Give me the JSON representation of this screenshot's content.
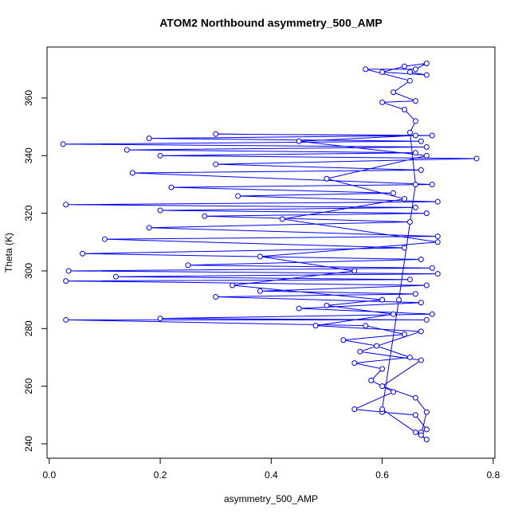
{
  "chart_data": {
    "type": "line",
    "title": "ATOM2 Northbound asymmetry_500_AMP",
    "x_label": "asymmetry_500_AMP",
    "y_label": "Theta (K)",
    "color": "#0000ff",
    "markers": true,
    "xlim": [
      -0.004,
      0.803
    ],
    "ylim": [
      235,
      377.7
    ],
    "xticks": [
      {
        "value": 0,
        "label": "0.0"
      },
      0.2,
      0.4,
      0.6,
      0.8
    ],
    "yticks": [
      240,
      260,
      280,
      300,
      320,
      340,
      360
    ],
    "series": [
      {
        "name": "asymmetry_500_AMP",
        "color": "#0000ff",
        "x": [
          0.67,
          0.68,
          0.66,
          0.6,
          0.55,
          0.62,
          0.58,
          0.6,
          0.55,
          0.65,
          0.59,
          0.53,
          0.64,
          0.57,
          0.03,
          0.68,
          0.2,
          0.69,
          0.45,
          0.67,
          0.3,
          0.66,
          0.38,
          0.68,
          0.03,
          0.65,
          0.12,
          0.7,
          0.035,
          0.69,
          0.25,
          0.67,
          0.06,
          0.64,
          0.1,
          0.7,
          0.18,
          0.65,
          0.28,
          0.68,
          0.2,
          0.66,
          0.03,
          0.7,
          0.34,
          0.62,
          0.22,
          0.69,
          0.15,
          0.67,
          0.3,
          0.77,
          0.2,
          0.66,
          0.14,
          0.68,
          0.025,
          0.67,
          0.18,
          0.69,
          0.3,
          0.66,
          0.45,
          0.68,
          0.5,
          0.64,
          0.42,
          0.7,
          0.38,
          0.55,
          0.33,
          0.6,
          0.5,
          0.62,
          0.48,
          0.67,
          0.56,
          0.67,
          0.6,
          0.66,
          0.68,
          0.67,
          0.68,
          0.66,
          0.6,
          0.63,
          0.66,
          0.65,
          0.66,
          0.64,
          0.6,
          0.66,
          0.62,
          0.65,
          0.57,
          0.66,
          0.68,
          0.64,
          0.6,
          0.68,
          0.65
        ],
        "values": [
          244,
          245,
          250,
          251,
          252,
          258,
          262,
          266,
          268,
          270,
          274,
          276,
          278,
          281,
          283,
          283,
          283.5,
          285,
          287,
          289,
          291,
          292,
          293,
          295,
          296.5,
          297,
          298,
          299,
          300,
          301,
          302,
          304,
          306,
          308,
          311,
          312,
          315,
          317,
          319,
          320,
          321,
          322,
          323,
          324,
          326,
          327,
          329,
          330,
          334,
          335,
          337,
          339,
          340,
          341,
          342,
          343,
          344,
          345,
          346,
          347,
          347.5,
          347,
          345,
          340,
          332,
          325,
          318,
          310,
          305,
          300,
          295,
          290,
          288,
          285,
          281,
          279,
          272,
          269,
          260,
          256,
          251,
          243,
          241.5,
          244,
          252,
          290,
          330,
          348,
          352,
          356,
          358.5,
          359,
          362,
          366,
          370,
          370,
          372,
          371,
          369,
          368,
          369
        ]
      }
    ]
  }
}
